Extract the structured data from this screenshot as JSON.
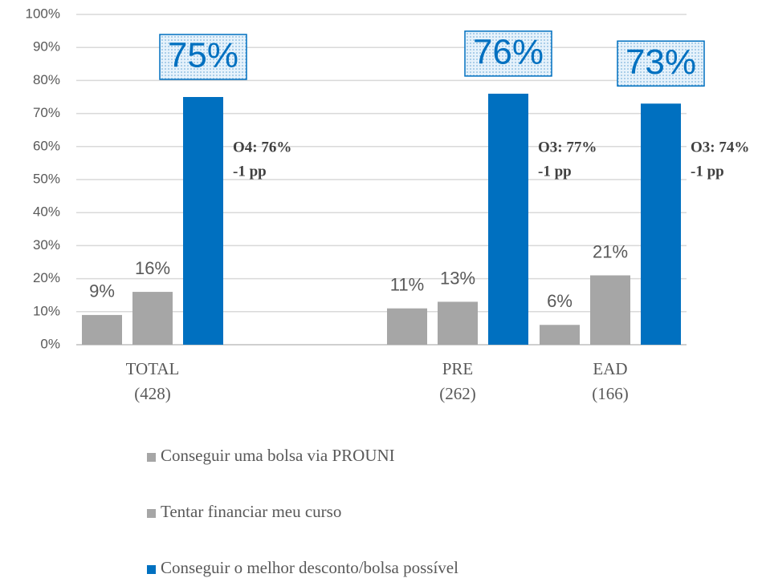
{
  "chart_data": {
    "type": "bar",
    "categories": [
      "TOTAL",
      null,
      "PRE",
      "EAD"
    ],
    "category_counts": [
      "(428)",
      null,
      "(262)",
      "(166)"
    ],
    "series": [
      {
        "name": "Conseguir uma bolsa via PROUNI",
        "color": "#a6a6a6",
        "values": [
          9,
          null,
          11,
          6
        ],
        "value_labels": [
          "9%",
          null,
          "11%",
          "6%"
        ]
      },
      {
        "name": "Tentar financiar meu curso",
        "color": "#a6a6a6",
        "values": [
          16,
          null,
          13,
          21
        ],
        "value_labels": [
          "16%",
          null,
          "13%",
          "21%"
        ]
      },
      {
        "name": "Conseguir o melhor desconto/bolsa possível",
        "color": "#0070c0",
        "values": [
          75,
          null,
          76,
          73
        ],
        "value_labels": [
          "75%",
          null,
          "76%",
          "73%"
        ]
      }
    ],
    "annotations": [
      [
        "O4: 76%",
        "-1 pp"
      ],
      null,
      [
        "O3: 77%",
        "-1 pp"
      ],
      [
        "O3: 74%",
        "-1 pp"
      ]
    ],
    "ylim": [
      0,
      100
    ],
    "yticks": [
      {
        "value": 0,
        "label": "0%"
      },
      {
        "value": 10,
        "label": "10%"
      },
      {
        "value": 20,
        "label": "20%"
      },
      {
        "value": 30,
        "label": "30%"
      },
      {
        "value": 40,
        "label": "40%"
      },
      {
        "value": 50,
        "label": "50%"
      },
      {
        "value": 60,
        "label": "60%"
      },
      {
        "value": 70,
        "label": "70%"
      },
      {
        "value": 80,
        "label": "80%"
      },
      {
        "value": 90,
        "label": "90%"
      },
      {
        "value": 100,
        "label": "100%"
      }
    ],
    "grid": true,
    "legend": "bottom"
  }
}
